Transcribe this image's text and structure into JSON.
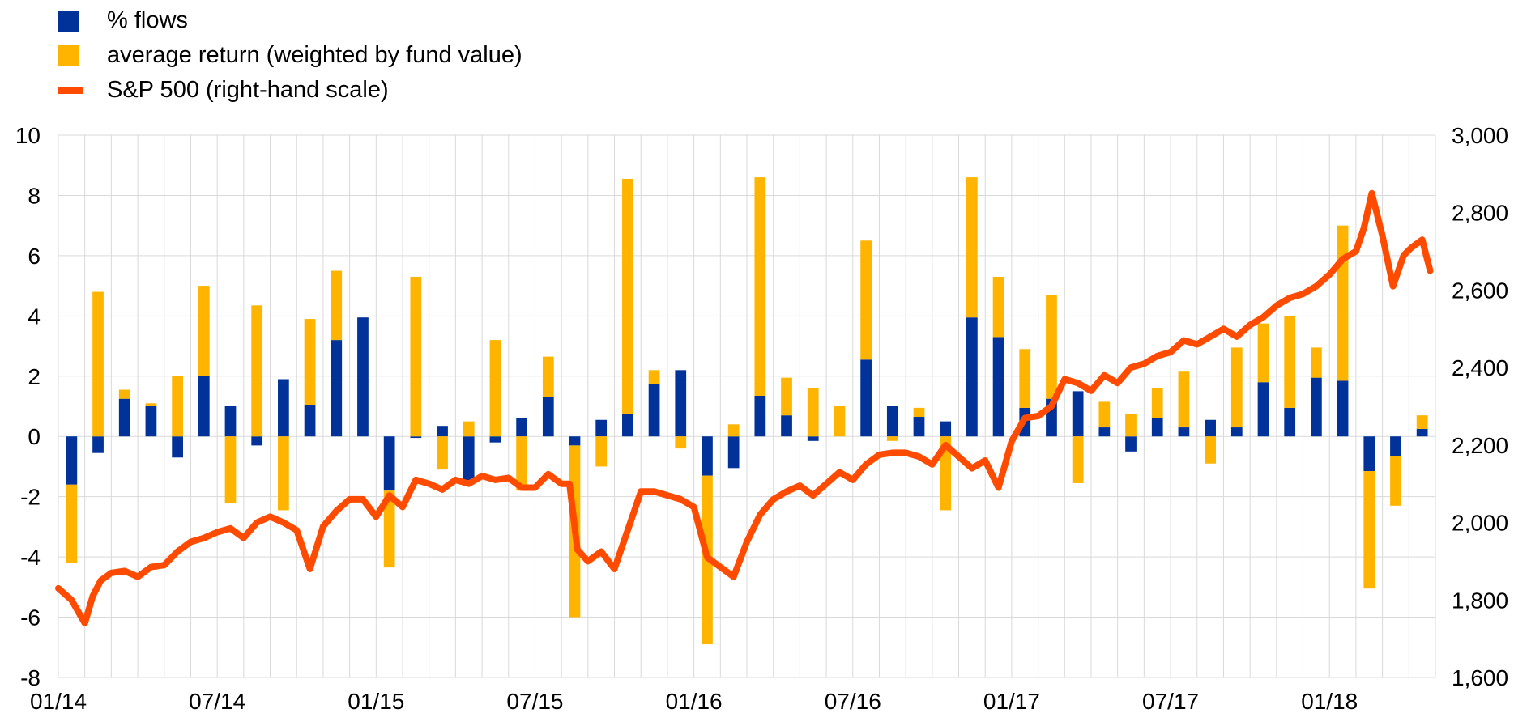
{
  "colors": {
    "flows": "#003299",
    "returns": "#FFB400",
    "sp500": "#FF4B00",
    "grid": "#D9D9D9"
  },
  "chart_data": {
    "type": "bar",
    "legend": {
      "position": "top-left",
      "entries": [
        "% flows",
        "average return (weighted by fund value)",
        "S&P 500 (right-hand scale)"
      ]
    },
    "grid": true,
    "x_tick_labels": [
      "01/14",
      "07/14",
      "01/15",
      "07/15",
      "01/16",
      "07/16",
      "01/17",
      "07/17",
      "01/18"
    ],
    "x_tick_month_index": [
      0,
      6,
      12,
      18,
      24,
      30,
      36,
      42,
      48
    ],
    "left_axis": {
      "range": [
        -8,
        10
      ],
      "ticks": [
        10,
        8,
        6,
        4,
        2,
        0,
        -2,
        -4,
        -6,
        -8
      ],
      "tick_labels": [
        "10",
        "8",
        "6",
        "4",
        "2",
        "0",
        "-2",
        "-4",
        "-6",
        "-8"
      ]
    },
    "right_axis": {
      "range": [
        1600,
        3000
      ],
      "ticks": [
        3000,
        2800,
        2600,
        2400,
        2200,
        2000,
        1800,
        1600
      ],
      "tick_labels": [
        "3,000",
        "2,800",
        "2,600",
        "2,400",
        "2,200",
        "2,000",
        "1,800",
        "1,600"
      ]
    },
    "x_range_months": [
      0,
      52
    ],
    "bar_series": [
      {
        "name": "% flows",
        "type": "bar",
        "stacked": true,
        "x_month": [
          0,
          1,
          2,
          3,
          4,
          5,
          6,
          7,
          8,
          9,
          10,
          11,
          12,
          13,
          14,
          15,
          16,
          17,
          18,
          19,
          20,
          21,
          22,
          23,
          24,
          25,
          26,
          27,
          28,
          29,
          30,
          31,
          32,
          33,
          34,
          35,
          36,
          37,
          38,
          39,
          40,
          41,
          42,
          43,
          44,
          45,
          46,
          47,
          48,
          49,
          50,
          51
        ],
        "values": [
          -1.6,
          -0.55,
          1.25,
          1.0,
          -0.7,
          2.0,
          1.0,
          -0.3,
          1.9,
          1.05,
          3.2,
          3.95,
          -1.8,
          -0.05,
          0.35,
          -1.45,
          -0.2,
          0.6,
          1.3,
          -0.3,
          0.55,
          0.75,
          1.75,
          2.2,
          -1.3,
          -1.05,
          1.35,
          0.7,
          -0.15,
          0.0,
          2.55,
          1.0,
          0.65,
          0.5,
          3.95,
          3.3,
          0.95,
          1.25,
          1.5,
          0.3,
          -0.5,
          0.6,
          0.3,
          0.55,
          0.3,
          1.8,
          0.95,
          1.95,
          1.85,
          -1.15,
          -0.65,
          0.25
        ]
      },
      {
        "name": "average return (weighted by fund value)",
        "type": "bar",
        "stacked": true,
        "x_month": [
          0,
          1,
          2,
          3,
          4,
          5,
          6,
          7,
          8,
          9,
          10,
          11,
          12,
          13,
          14,
          15,
          16,
          17,
          18,
          19,
          20,
          21,
          22,
          23,
          24,
          25,
          26,
          27,
          28,
          29,
          30,
          31,
          32,
          33,
          34,
          35,
          36,
          37,
          38,
          39,
          40,
          41,
          42,
          43,
          44,
          45,
          46,
          47,
          48,
          49,
          50,
          51
        ],
        "values": [
          -2.6,
          4.8,
          0.3,
          0.1,
          2.0,
          3.0,
          -2.2,
          4.35,
          -2.45,
          2.85,
          2.3,
          0.0,
          -2.55,
          5.3,
          -1.1,
          0.5,
          3.2,
          -1.8,
          1.35,
          -5.7,
          -1.0,
          7.8,
          0.45,
          -0.4,
          -5.6,
          0.4,
          7.25,
          1.25,
          1.6,
          1.0,
          3.95,
          -0.15,
          0.3,
          -2.45,
          4.65,
          2.0,
          1.95,
          3.45,
          -1.55,
          0.85,
          0.75,
          1.0,
          1.85,
          -0.9,
          2.65,
          1.95,
          3.05,
          1.0,
          5.15,
          -3.9,
          -1.65,
          0.45
        ]
      }
    ],
    "line_series": {
      "name": "S&P 500 (right-hand scale)",
      "type": "line",
      "axis": "right",
      "x_month": [
        0,
        0.5,
        1,
        1.3,
        1.6,
        2,
        2.5,
        3,
        3.5,
        4,
        4.5,
        5,
        5.5,
        6,
        6.5,
        7,
        7.5,
        8,
        8.5,
        9,
        9.5,
        10,
        10.5,
        11,
        11.5,
        12,
        12.5,
        13,
        13.5,
        14,
        14.5,
        15,
        15.5,
        16,
        16.5,
        17,
        17.5,
        18,
        18.5,
        19,
        19.3,
        19.6,
        20,
        20.5,
        21,
        21.5,
        22,
        22.5,
        23,
        23.5,
        24,
        24.5,
        25,
        25.5,
        26,
        26.5,
        27,
        27.5,
        28,
        28.5,
        29,
        29.5,
        30,
        30.5,
        31,
        31.5,
        32,
        32.5,
        33,
        33.5,
        34,
        34.5,
        35,
        35.5,
        36,
        36.5,
        37,
        37.5,
        38,
        38.5,
        39,
        39.5,
        40,
        40.5,
        41,
        41.5,
        42,
        42.5,
        43,
        43.5,
        44,
        44.5,
        45,
        45.5,
        46,
        46.5,
        47,
        47.5,
        48,
        48.5,
        49,
        49.3,
        49.6,
        50,
        50.4,
        50.8,
        51.1,
        51.5,
        51.8
      ],
      "values": [
        1830,
        1800,
        1740,
        1810,
        1850,
        1870,
        1875,
        1860,
        1885,
        1890,
        1925,
        1950,
        1960,
        1975,
        1985,
        1960,
        2000,
        2015,
        2000,
        1980,
        1880,
        1990,
        2030,
        2060,
        2060,
        2015,
        2070,
        2040,
        2110,
        2100,
        2085,
        2110,
        2100,
        2120,
        2110,
        2115,
        2090,
        2090,
        2125,
        2100,
        2100,
        1930,
        1900,
        1925,
        1880,
        1980,
        2080,
        2080,
        2070,
        2060,
        2040,
        1910,
        1885,
        1860,
        1950,
        2020,
        2060,
        2080,
        2095,
        2070,
        2100,
        2130,
        2110,
        2150,
        2175,
        2180,
        2180,
        2170,
        2150,
        2200,
        2170,
        2140,
        2160,
        2090,
        2210,
        2270,
        2275,
        2300,
        2370,
        2360,
        2340,
        2380,
        2360,
        2400,
        2410,
        2430,
        2440,
        2470,
        2460,
        2480,
        2500,
        2480,
        2510,
        2530,
        2560,
        2580,
        2590,
        2610,
        2640,
        2680,
        2700,
        2760,
        2850,
        2740,
        2610,
        2690,
        2710,
        2730,
        2650
      ]
    }
  }
}
